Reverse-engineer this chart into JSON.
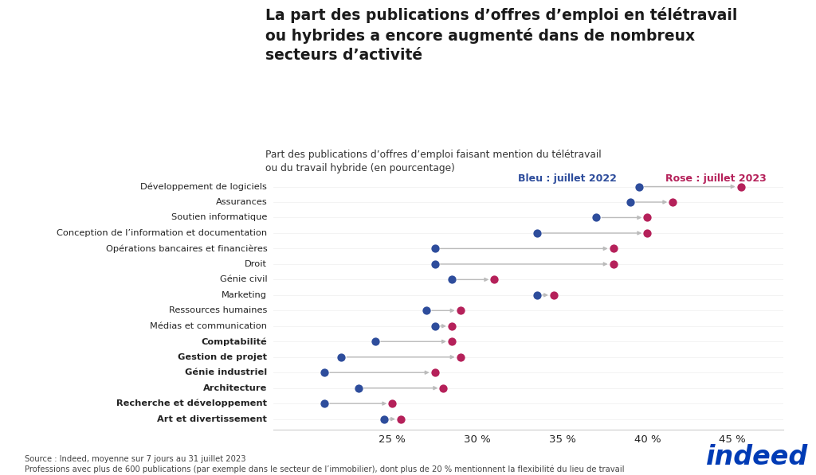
{
  "title": "La part des publications d’offres d’emploi en télétravail\nou hybrides a encore augmenté dans de nombreux\nsecteurs d’activité",
  "subtitle": "Part des publications d’offres d’emploi faisant mention du télétravail\nou du travail hybride (en pourcentage)",
  "legend_blue": "Bleu : juillet 2022",
  "legend_pink": "Rose : juillet 2023",
  "categories": [
    "Développement de logiciels",
    "Assurances",
    "Soutien informatique",
    "Conception de l’information et documentation",
    "Opérations bancaires et financières",
    "Droit",
    "Génie civil",
    "Marketing",
    "Ressources humaines",
    "Médias et communication",
    "Comptabilité",
    "Gestion de projet",
    "Génie industriel",
    "Architecture",
    "Recherche et développement",
    "Art et divertissement"
  ],
  "values_2022": [
    39.5,
    39.0,
    37.0,
    33.5,
    27.5,
    27.5,
    28.5,
    33.5,
    27.0,
    27.5,
    24.0,
    22.0,
    21.0,
    23.0,
    21.0,
    24.5
  ],
  "values_2023": [
    45.5,
    41.5,
    40.0,
    40.0,
    38.0,
    38.0,
    31.0,
    34.5,
    29.0,
    28.5,
    28.5,
    29.0,
    27.5,
    28.0,
    25.0,
    25.5
  ],
  "blue_color": "#2E4D9C",
  "pink_color": "#B5215A",
  "arrow_color": "#BBBBBB",
  "background_color": "#FFFFFF",
  "xlim": [
    18.0,
    48.0
  ],
  "xticks": [
    25,
    30,
    35,
    40,
    45
  ],
  "xtick_labels": [
    "25 %",
    "30 %",
    "35 %",
    "40 %",
    "45 %"
  ],
  "source_line1": "Source : Indeed, moyenne sur 7 jours au 31 juillet 2023",
  "source_line2": "Professions avec plus de 600 publications (par exemple dans le secteur de l’immobilier), dont plus de 20 % mentionnent la flexibilité du lieu de travail",
  "indeed_color": "#003BB5",
  "normal_categories": [
    "Développement de logiciels",
    "Assurances",
    "Soutien informatique",
    "Conception de l’information et documentation",
    "Opérations bancaires et financières",
    "Droit",
    "Génie civil",
    "Marketing",
    "Ressources humaines",
    "Médias et communication"
  ],
  "bold_categories": [
    "Comptabilité",
    "Gestion de projet",
    "Génie industriel",
    "Architecture",
    "Recherche et développement",
    "Art et divertissement"
  ]
}
